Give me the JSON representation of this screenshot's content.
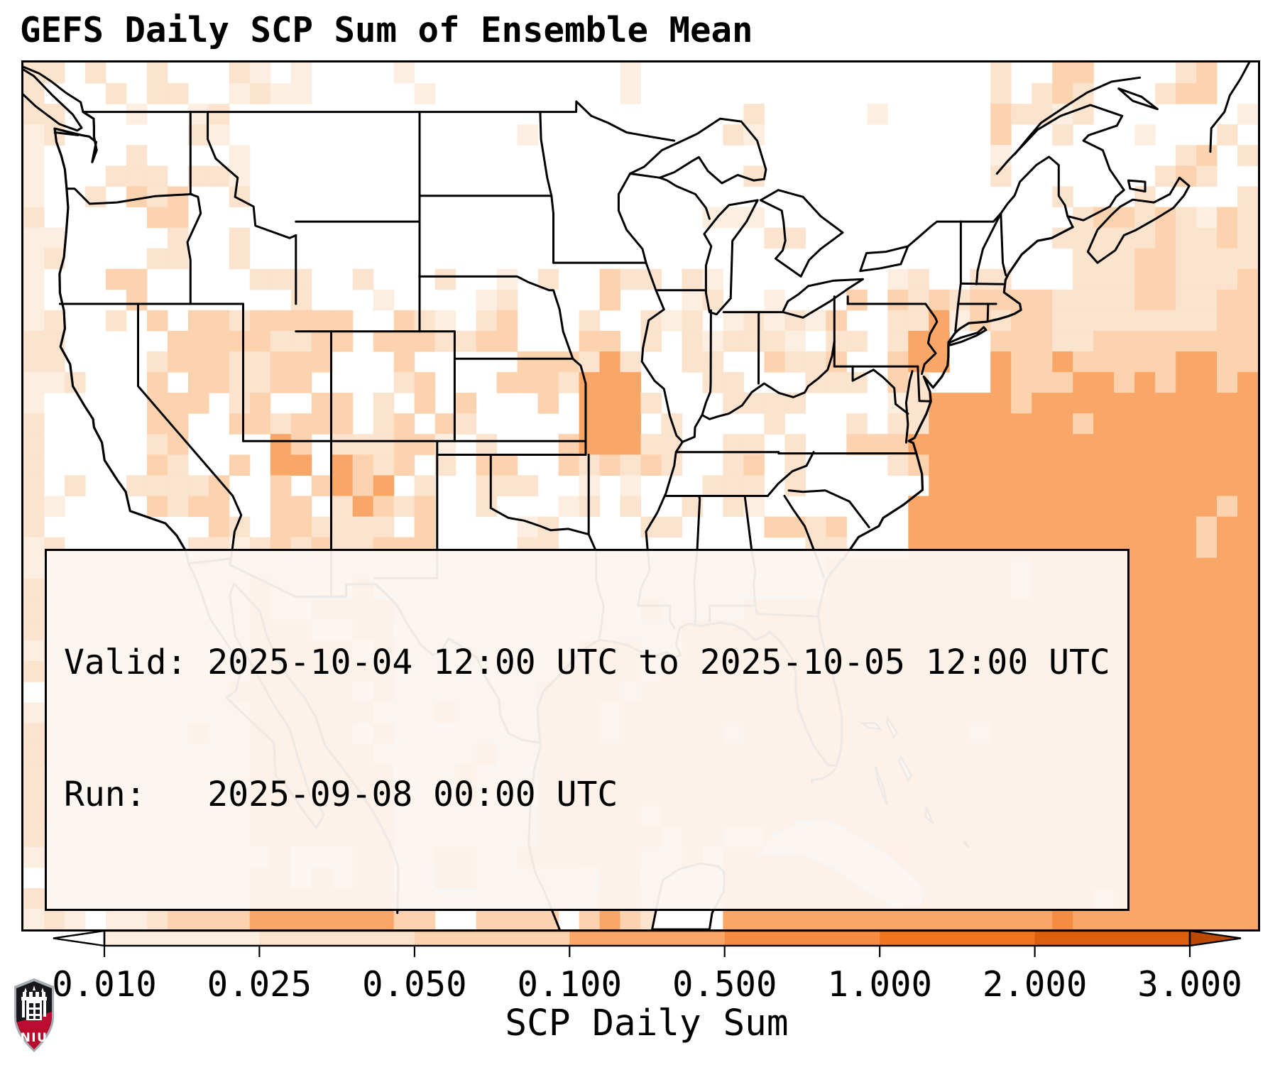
{
  "title": "GEFS Daily SCP Sum of Ensemble Mean",
  "info_box": {
    "valid_line": "Valid: 2025-10-04 12:00 UTC to 2025-10-05 12:00 UTC",
    "run_line": "Run:   2025-09-08 00:00 UTC"
  },
  "colorbar": {
    "label": "SCP Daily Sum",
    "tick_labels": [
      "0.010",
      "0.025",
      "0.050",
      "0.100",
      "0.500",
      "1.000",
      "2.000",
      "3.000"
    ],
    "boundaries": [
      0.01,
      0.025,
      0.05,
      0.1,
      0.5,
      1.0,
      2.0,
      3.0
    ],
    "segment_colors": [
      "#fcefe2",
      "#fbe3cd",
      "#fcd3ae",
      "#f9a768",
      "#f68c41",
      "#ee7620",
      "#dc5e0e"
    ],
    "under_color": "#ffffff",
    "over_color": "#bb4903",
    "outline_color": "#000000",
    "extend": "both"
  },
  "logo": {
    "org": "NIU",
    "shield_top_color": "#18181c",
    "shield_band_color": "#ba0c2f",
    "shield_border_color": "#a8adb3"
  },
  "map": {
    "frame_color": "#000000",
    "land_fill": "#ffffff",
    "border_line_color": "#000000",
    "secondary_coast_color": "#bdbdbd"
  },
  "chart_data": {
    "type": "heatmap",
    "title": "GEFS Daily SCP Sum of Ensemble Mean",
    "model": "GEFS",
    "statistic": "Daily SCP Sum of Ensemble Mean",
    "variable": "SCP Daily Sum",
    "valid_start": "2025-10-04 12:00 UTC",
    "valid_end": "2025-10-05 12:00 UTC",
    "run": "2025-09-08 00:00 UTC",
    "colorbar_label": "SCP Daily Sum",
    "levels": [
      0.01,
      0.025,
      0.05,
      0.1,
      0.5,
      1.0,
      2.0,
      3.0
    ],
    "extend": "both",
    "palette": "Oranges",
    "region": "CONUS, Mexico, southern Canada and adjacent waters",
    "observed_pattern": [
      {
        "area": "Gulf of Mexico and subtropical western Atlantic",
        "scp_daily_sum": "0.1-0.5"
      },
      {
        "area": "Florida peninsula and southeast coastal waters",
        "scp_daily_sum": "0.05-0.5"
      },
      {
        "area": "western Mexico / Gulf of California corridor",
        "scp_daily_sum": "0.05-0.5"
      },
      {
        "area": "central Missouri local maximum",
        "scp_daily_sum": "0.1-0.5"
      },
      {
        "area": "scattered interior West, Oregon and Northeast",
        "scp_daily_sum": "0.01-0.1"
      },
      {
        "area": "northern Plains and Upper Midwest",
        "scp_daily_sum": "< 0.01"
      }
    ]
  }
}
